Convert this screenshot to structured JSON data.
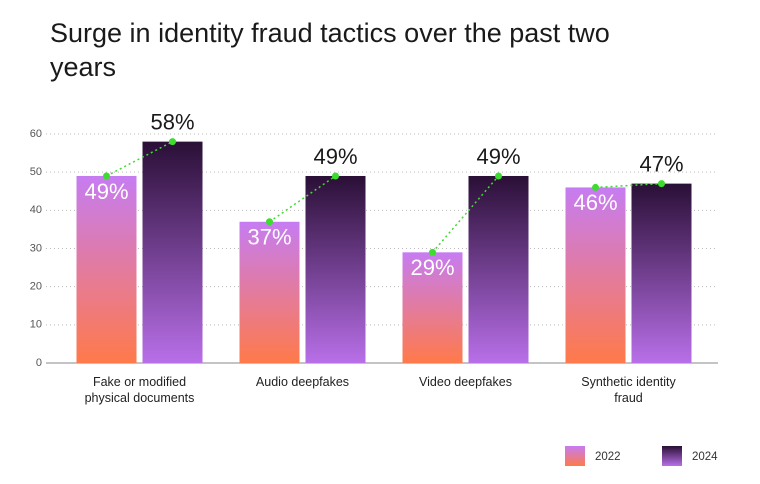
{
  "chart_data": {
    "type": "bar",
    "title": "Surge in identity fraud tactics over the past two years",
    "categories": [
      "Fake or modified physical documents",
      "Audio deepfakes",
      "Video deepfakes",
      "Synthetic identity fraud"
    ],
    "series": [
      {
        "name": "2022",
        "color": "#c67cf2",
        "values": [
          49,
          37,
          29,
          46
        ],
        "value_labels": [
          "49%",
          "37%",
          "29%",
          "46%"
        ]
      },
      {
        "name": "2024",
        "color": "#2a0f36",
        "values": [
          58,
          49,
          49,
          47
        ],
        "value_labels": [
          "58%",
          "49%",
          "49%",
          "47%"
        ]
      }
    ],
    "ylim": [
      0,
      60
    ],
    "yticks": [
      0,
      10,
      20,
      30,
      40,
      50,
      60
    ],
    "grid": true,
    "connector_color": "#3ddc2f"
  }
}
